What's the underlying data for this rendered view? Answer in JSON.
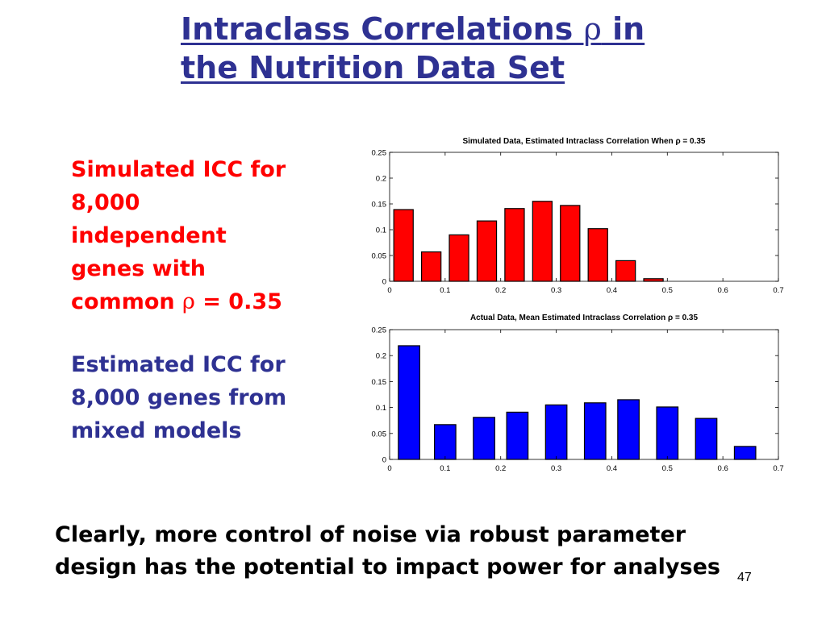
{
  "slide": {
    "title_line1": "Intraclass Correlations ",
    "title_rho": "ρ",
    "title_line1_end": " in",
    "title_line2": "the Nutrition Data Set",
    "red_text_lines": [
      "Simulated ICC for",
      "8,000",
      "independent",
      "genes with"
    ],
    "red_text_last": "common ",
    "red_text_rho": "ρ",
    "red_text_value": " = 0.35",
    "blue_text_lines": [
      "Estimated ICC for",
      "8,000 genes from",
      "mixed models"
    ],
    "conclusion_line1": "Clearly, more control of noise via robust parameter",
    "conclusion_line2": "design has the potential to impact power for analyses",
    "slide_number": "47"
  },
  "chart_data": [
    {
      "type": "bar",
      "title": "Simulated Data, Estimated Intraclass Correlation When ρ = 0.35",
      "x": [
        0.025,
        0.075,
        0.125,
        0.175,
        0.225,
        0.275,
        0.325,
        0.375,
        0.425,
        0.475,
        0.525,
        0.575,
        0.625,
        0.675
      ],
      "values": [
        0.139,
        0.057,
        0.09,
        0.117,
        0.141,
        0.155,
        0.147,
        0.102,
        0.04,
        0.005,
        0,
        0,
        0,
        0
      ],
      "bar_width": 0.05,
      "xlim": [
        0,
        0.7
      ],
      "ylim": [
        0,
        0.25
      ],
      "xticks": [
        "0",
        "0.1",
        "0.2",
        "0.3",
        "0.4",
        "0.5",
        "0.6",
        "0.7"
      ],
      "yticks": [
        "0",
        "0.05",
        "0.1",
        "0.15",
        "0.2",
        "0.25"
      ],
      "color": "#ff0000",
      "xlabel": "",
      "ylabel": ""
    },
    {
      "type": "bar",
      "title": "Actual Data, Mean Estimated Intraclass Correlation ρ = 0.35",
      "x": [
        0.035,
        0.1,
        0.17,
        0.23,
        0.3,
        0.37,
        0.43,
        0.5,
        0.57,
        0.64
      ],
      "values": [
        0.219,
        0.067,
        0.081,
        0.091,
        0.105,
        0.109,
        0.115,
        0.101,
        0.079,
        0.025
      ],
      "bar_width": 0.055,
      "xlim": [
        0,
        0.7
      ],
      "ylim": [
        0,
        0.25
      ],
      "xticks": [
        "0",
        "0.1",
        "0.2",
        "0.3",
        "0.4",
        "0.5",
        "0.6",
        "0.7"
      ],
      "yticks": [
        "0",
        "0.05",
        "0.1",
        "0.15",
        "0.2",
        "0.25"
      ],
      "color": "#0000ff",
      "xlabel": "",
      "ylabel": ""
    }
  ]
}
